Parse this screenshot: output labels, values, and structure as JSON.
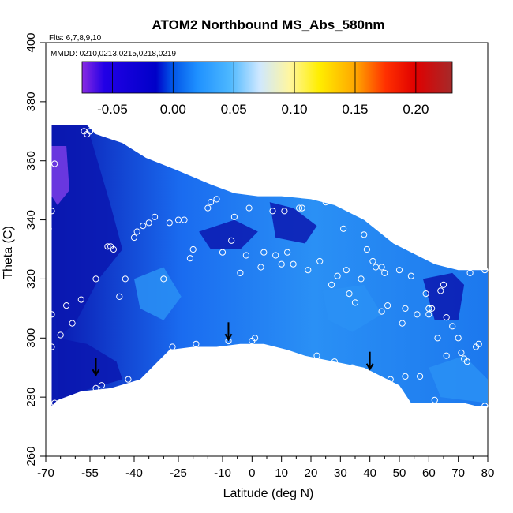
{
  "chart_data": {
    "type": "heatmap",
    "title": "ATOM2 Northbound MS_Abs_580nm",
    "annotations": [
      "Flts: 6,7,8,9,10",
      "MMDD: 0210,0213,0215,0218,0219"
    ],
    "xlabel": "Latitude (deg N)",
    "ylabel": "Theta (C)",
    "xlim": [
      -70,
      80
    ],
    "ylim": [
      260,
      400
    ],
    "x_tick_labels": [
      "-70",
      "-55",
      "-40",
      "-25",
      "-10",
      "0",
      "10",
      "20",
      "30",
      "40",
      "50",
      "60",
      "70",
      "80"
    ],
    "x_tick_values": [
      -70,
      -55,
      -40,
      -25,
      -10,
      0,
      10,
      20,
      30,
      40,
      50,
      60,
      70,
      80
    ],
    "x_minor_ticks": [
      -65,
      -60,
      -50,
      -45,
      -35,
      -30,
      -20,
      -15,
      -5,
      5,
      15,
      25,
      35,
      45,
      55,
      65,
      75
    ],
    "y_tick_values": [
      260,
      280,
      300,
      320,
      340,
      360,
      380,
      400
    ],
    "y_tick_labels": [
      "260",
      "280",
      "300",
      "320",
      "340",
      "360",
      "380",
      "400"
    ],
    "colorbar": {
      "range": [
        -0.075,
        0.23
      ],
      "tick_values": [
        -0.05,
        0.0,
        0.05,
        0.1,
        0.15,
        0.2
      ],
      "tick_labels": [
        "-0.05",
        "0.00",
        "0.05",
        "0.10",
        "0.15",
        "0.20"
      ],
      "colors": [
        "#8a2be2",
        "#2200e6",
        "#0000c8",
        "#0050e6",
        "#1e90ff",
        "#4db8ff",
        "#cfe8ff",
        "#ffffff",
        "#fff6a0",
        "#ffee00",
        "#ffa500",
        "#ff3000",
        "#e00000",
        "#a52a2a"
      ]
    },
    "field_colors": {
      "dark_blue": "#0a18b0",
      "mid_blue": "#1460e8",
      "light_blue": "#2a90f5",
      "purple": "#7a3de8",
      "white_region": "#ffffff"
    },
    "sample_points": [
      [
        -69,
        337
      ],
      [
        -68,
        343
      ],
      [
        -67,
        359
      ],
      [
        -68,
        308
      ],
      [
        -68,
        297
      ],
      [
        -67,
        278
      ],
      [
        -65,
        301
      ],
      [
        -63,
        311
      ],
      [
        -61,
        305
      ],
      [
        -58,
        313
      ],
      [
        -57,
        370
      ],
      [
        -56,
        369
      ],
      [
        -55,
        370
      ],
      [
        -53,
        320
      ],
      [
        -53,
        283
      ],
      [
        -51,
        284
      ],
      [
        -49,
        331
      ],
      [
        -48,
        331
      ],
      [
        -47,
        330
      ],
      [
        -45,
        314
      ],
      [
        -43,
        320
      ],
      [
        -42,
        286
      ],
      [
        -40,
        334
      ],
      [
        -39,
        336
      ],
      [
        -37,
        338
      ],
      [
        -35,
        339
      ],
      [
        -33,
        341
      ],
      [
        -30,
        320
      ],
      [
        -28,
        339
      ],
      [
        -27,
        297
      ],
      [
        -25,
        340
      ],
      [
        -23,
        340
      ],
      [
        -21,
        327
      ],
      [
        -20,
        330
      ],
      [
        -19,
        298
      ],
      [
        -15,
        344
      ],
      [
        -14,
        346
      ],
      [
        -12,
        347
      ],
      [
        -10,
        329
      ],
      [
        -8,
        299
      ],
      [
        -7,
        333
      ],
      [
        -6,
        341
      ],
      [
        -4,
        322
      ],
      [
        -2,
        328
      ],
      [
        -1,
        344
      ],
      [
        0,
        299
      ],
      [
        1,
        300
      ],
      [
        3,
        324
      ],
      [
        4,
        329
      ],
      [
        7,
        343
      ],
      [
        8,
        328
      ],
      [
        10,
        325
      ],
      [
        11,
        343
      ],
      [
        12,
        329
      ],
      [
        13,
        294
      ],
      [
        14,
        325
      ],
      [
        16,
        344
      ],
      [
        17,
        344
      ],
      [
        19,
        323
      ],
      [
        22,
        294
      ],
      [
        23,
        326
      ],
      [
        25,
        346
      ],
      [
        27,
        318
      ],
      [
        28,
        292
      ],
      [
        29,
        321
      ],
      [
        31,
        337
      ],
      [
        32,
        323
      ],
      [
        33,
        315
      ],
      [
        34,
        290
      ],
      [
        35,
        312
      ],
      [
        37,
        320
      ],
      [
        38,
        335
      ],
      [
        39,
        330
      ],
      [
        41,
        326
      ],
      [
        42,
        324
      ],
      [
        44,
        324
      ],
      [
        44,
        309
      ],
      [
        45,
        322
      ],
      [
        46,
        311
      ],
      [
        47,
        286
      ],
      [
        50,
        323
      ],
      [
        51,
        305
      ],
      [
        52,
        310
      ],
      [
        52,
        287
      ],
      [
        54,
        321
      ],
      [
        56,
        308
      ],
      [
        57,
        287
      ],
      [
        59,
        315
      ],
      [
        60,
        310
      ],
      [
        60,
        308
      ],
      [
        61,
        310
      ],
      [
        62,
        279
      ],
      [
        63,
        300
      ],
      [
        64,
        316
      ],
      [
        65,
        318
      ],
      [
        66,
        294
      ],
      [
        66,
        307
      ],
      [
        68,
        304
      ],
      [
        70,
        300
      ],
      [
        71,
        295
      ],
      [
        72,
        293
      ],
      [
        73,
        292
      ],
      [
        74,
        322
      ],
      [
        76,
        297
      ],
      [
        77,
        298
      ],
      [
        79,
        323
      ],
      [
        79,
        277
      ]
    ],
    "arrows_at": [
      [
        -53,
        288
      ],
      [
        -8,
        300
      ],
      [
        40,
        290
      ]
    ]
  }
}
